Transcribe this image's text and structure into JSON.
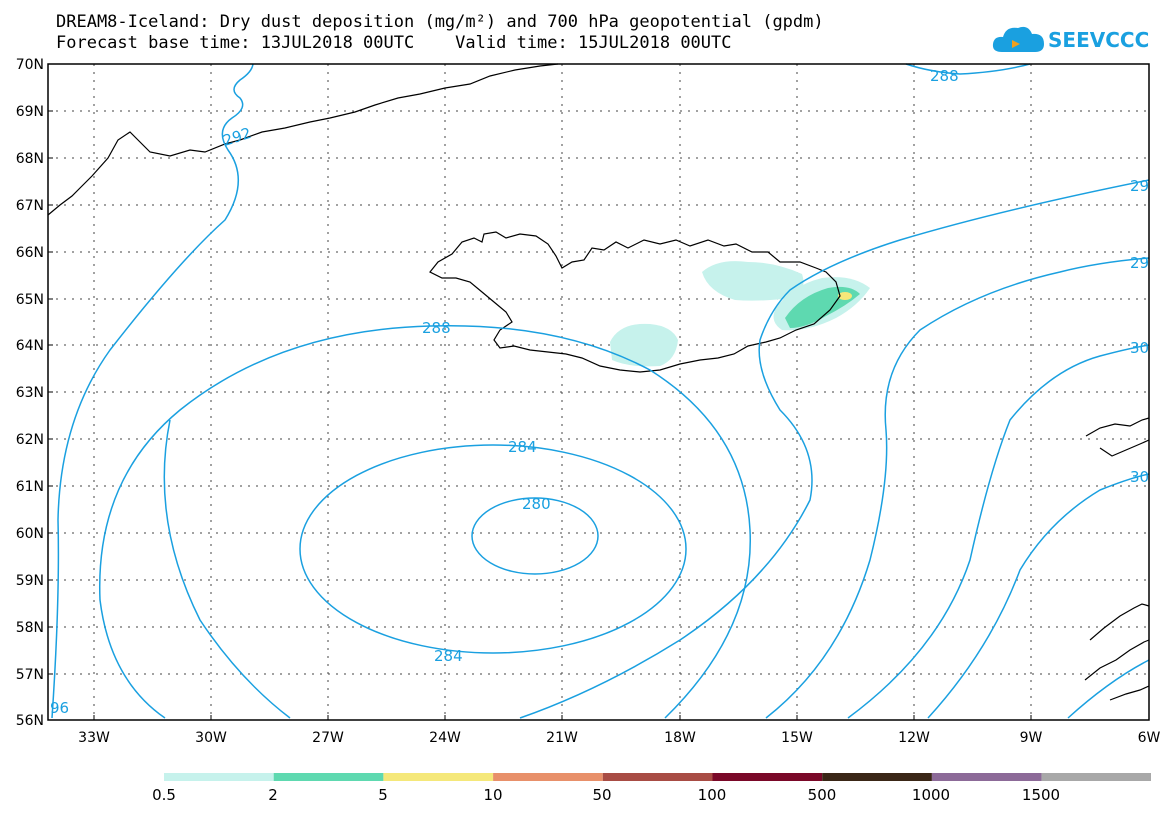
{
  "header": {
    "title": "DREAM8-Iceland: Dry dust deposition (mg/m²) and 700 hPa geopotential (gpdm)",
    "subtitle": "Forecast base time: 13JUL2018 00UTC    Valid time: 15JUL2018 00UTC"
  },
  "logo": {
    "text": "SEEVCCC"
  },
  "map": {
    "lat_labels": [
      "70N",
      "69N",
      "68N",
      "67N",
      "66N",
      "65N",
      "64N",
      "63N",
      "62N",
      "61N",
      "60N",
      "59N",
      "58N",
      "57N",
      "56N"
    ],
    "lon_labels": [
      "33W",
      "30W",
      "27W",
      "24W",
      "21W",
      "18W",
      "15W",
      "12W",
      "9W",
      "6W"
    ],
    "contour_labels": [
      "288",
      "292",
      "288",
      "284",
      "280",
      "284",
      "29",
      "29",
      "30",
      "30",
      "96"
    ],
    "contour_color": "#1aa0e0",
    "land_outline_color": "#000000"
  },
  "legend": {
    "colors": [
      "#c6f2ec",
      "#5ed9b0",
      "#f5e87a",
      "#e8906a",
      "#a84c44",
      "#7a0828",
      "#3a2616",
      "#8c6a98",
      "#a8a8a8"
    ],
    "labels": [
      "0.5",
      "2",
      "5",
      "10",
      "50",
      "100",
      "500",
      "1000",
      "1500"
    ]
  }
}
